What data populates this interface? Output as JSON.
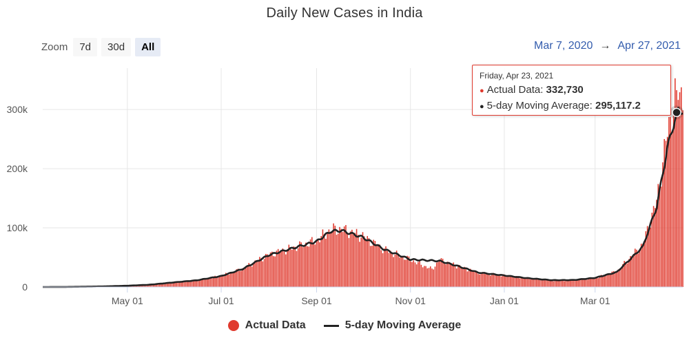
{
  "title": "Daily New Cases in India",
  "zoom": {
    "label": "Zoom",
    "buttons": [
      {
        "label": "7d",
        "active": false
      },
      {
        "label": "30d",
        "active": false
      },
      {
        "label": "All",
        "active": true
      }
    ]
  },
  "range": {
    "start": "Mar 7, 2020",
    "arrow": "→",
    "end": "Apr 27, 2021"
  },
  "colors": {
    "actual": "#e03a2e",
    "average": "#222222",
    "accent_blue": "#335cad"
  },
  "tooltip": {
    "date": "Friday, Apr 23, 2021",
    "bullet": "●",
    "actual_label": "Actual Data: ",
    "actual_value": "332,730",
    "avg_label": "5-day Moving Average: ",
    "avg_value": "295,117.2"
  },
  "legend": [
    {
      "label": "Actual Data",
      "icon": "red-circle"
    },
    {
      "label": "5-day Moving Average",
      "icon": "black-line"
    }
  ],
  "chart_data": {
    "type": "bar",
    "title": "Daily New Cases in India",
    "x_range": [
      "2020-03-07",
      "2021-04-27"
    ],
    "x_tick_labels": [
      "May 01",
      "Jul 01",
      "Sep 01",
      "Nov 01",
      "Jan 01",
      "Mar 01"
    ],
    "x_tick_dates": [
      "2020-05-01",
      "2020-07-01",
      "2020-09-01",
      "2020-11-01",
      "2021-01-01",
      "2021-03-01"
    ],
    "y_tick_labels": [
      "0",
      "100k",
      "200k",
      "300k"
    ],
    "y_ticks": [
      0,
      100000,
      200000,
      300000
    ],
    "ylim": [
      0,
      370000
    ],
    "grid": true,
    "legend_position": "bottom-center",
    "series": [
      {
        "name": "Actual Data",
        "render": "bar",
        "points": [
          [
            "2020-03-07",
            0
          ],
          [
            "2020-03-20",
            60
          ],
          [
            "2020-04-01",
            500
          ],
          [
            "2020-04-15",
            1100
          ],
          [
            "2020-05-01",
            2300
          ],
          [
            "2020-05-15",
            4000
          ],
          [
            "2020-06-01",
            8200
          ],
          [
            "2020-06-15",
            11500
          ],
          [
            "2020-07-01",
            18600
          ],
          [
            "2020-07-15",
            31000
          ],
          [
            "2020-08-01",
            55000
          ],
          [
            "2020-08-15",
            65000
          ],
          [
            "2020-09-01",
            78000
          ],
          [
            "2020-09-10",
            96500
          ],
          [
            "2020-09-17",
            97900
          ],
          [
            "2020-10-01",
            86000
          ],
          [
            "2020-10-15",
            63000
          ],
          [
            "2020-11-01",
            46000
          ],
          [
            "2020-11-15",
            30000
          ],
          [
            "2020-11-20",
            46000
          ],
          [
            "2020-12-01",
            36000
          ],
          [
            "2020-12-15",
            24000
          ],
          [
            "2021-01-01",
            19000
          ],
          [
            "2021-01-15",
            15000
          ],
          [
            "2021-02-01",
            11000
          ],
          [
            "2021-02-15",
            11600
          ],
          [
            "2021-03-01",
            15000
          ],
          [
            "2021-03-15",
            26000
          ],
          [
            "2021-03-25",
            53000
          ],
          [
            "2021-04-01",
            72000
          ],
          [
            "2021-04-10",
            145000
          ],
          [
            "2021-04-17",
            261000
          ],
          [
            "2021-04-23",
            332730
          ],
          [
            "2021-04-27",
            323000
          ]
        ]
      },
      {
        "name": "5-day Moving Average",
        "render": "line",
        "points": [
          [
            "2020-03-07",
            0
          ],
          [
            "2020-03-20",
            50
          ],
          [
            "2020-04-01",
            450
          ],
          [
            "2020-04-15",
            1000
          ],
          [
            "2020-05-01",
            2200
          ],
          [
            "2020-05-15",
            3800
          ],
          [
            "2020-06-01",
            8000
          ],
          [
            "2020-06-15",
            11300
          ],
          [
            "2020-07-01",
            18500
          ],
          [
            "2020-07-15",
            30500
          ],
          [
            "2020-08-01",
            54000
          ],
          [
            "2020-08-15",
            64500
          ],
          [
            "2020-09-01",
            77000
          ],
          [
            "2020-09-10",
            94000
          ],
          [
            "2020-09-17",
            95500
          ],
          [
            "2020-10-01",
            84000
          ],
          [
            "2020-10-15",
            63500
          ],
          [
            "2020-11-01",
            46500
          ],
          [
            "2020-11-20",
            44000
          ],
          [
            "2020-12-01",
            36000
          ],
          [
            "2020-12-15",
            24500
          ],
          [
            "2021-01-01",
            19500
          ],
          [
            "2021-01-15",
            15200
          ],
          [
            "2021-02-01",
            11500
          ],
          [
            "2021-02-15",
            11800
          ],
          [
            "2021-03-01",
            15500
          ],
          [
            "2021-03-15",
            25000
          ],
          [
            "2021-03-25",
            50000
          ],
          [
            "2021-04-01",
            68000
          ],
          [
            "2021-04-10",
            135000
          ],
          [
            "2021-04-17",
            235000
          ],
          [
            "2021-04-23",
            295117.2
          ],
          [
            "2021-04-27",
            300000
          ]
        ]
      }
    ],
    "highlight": {
      "date": "2021-04-23",
      "actual": 332730,
      "average": 295117.2
    }
  }
}
